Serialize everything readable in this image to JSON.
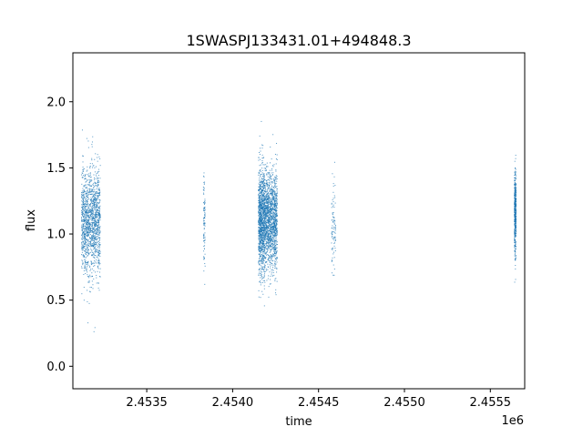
{
  "chart_data": {
    "type": "scatter",
    "title": "1SWASPJ133431.01+494848.3",
    "xlabel": "time",
    "ylabel": "flux",
    "x_offset_label": "1e6",
    "xlim": [
      2453070,
      2455700
    ],
    "ylim": [
      -0.17,
      2.37
    ],
    "xticks": [
      {
        "value": 2453500,
        "label": "2.4535"
      },
      {
        "value": 2454000,
        "label": "2.4540"
      },
      {
        "value": 2454500,
        "label": "2.4545"
      },
      {
        "value": 2455000,
        "label": "2.4550"
      },
      {
        "value": 2455500,
        "label": "2.4555"
      }
    ],
    "yticks": [
      {
        "value": 0.0,
        "label": "0.0"
      },
      {
        "value": 0.5,
        "label": "0.5"
      },
      {
        "value": 1.0,
        "label": "1.0"
      },
      {
        "value": 1.5,
        "label": "1.5"
      },
      {
        "value": 2.0,
        "label": "2.0"
      }
    ],
    "grid": false,
    "marker_color": "#1f77b4",
    "series": [
      {
        "values_summary": "dense clusters of photometric points",
        "clusters": [
          {
            "x_start": 2453120,
            "x_end": 2453230,
            "center": 1.1,
            "spread": 0.2,
            "min": -0.05,
            "max": 2.25,
            "count": 1400
          },
          {
            "x_start": 2453830,
            "x_end": 2453840,
            "center": 1.1,
            "spread": 0.18,
            "min": 0.5,
            "max": 1.68,
            "count": 90
          },
          {
            "x_start": 2454150,
            "x_end": 2454190,
            "center": 1.1,
            "spread": 0.2,
            "min": 0.15,
            "max": 2.3,
            "count": 1100
          },
          {
            "x_start": 2454190,
            "x_end": 2454260,
            "center": 1.1,
            "spread": 0.18,
            "min": 0.45,
            "max": 2.0,
            "count": 1300
          },
          {
            "x_start": 2454575,
            "x_end": 2454600,
            "center": 1.05,
            "spread": 0.2,
            "min": 0.2,
            "max": 1.66,
            "count": 90
          },
          {
            "x_start": 2455640,
            "x_end": 2455650,
            "center": 1.15,
            "spread": 0.15,
            "min": 0.58,
            "max": 1.6,
            "count": 500
          }
        ]
      }
    ]
  }
}
